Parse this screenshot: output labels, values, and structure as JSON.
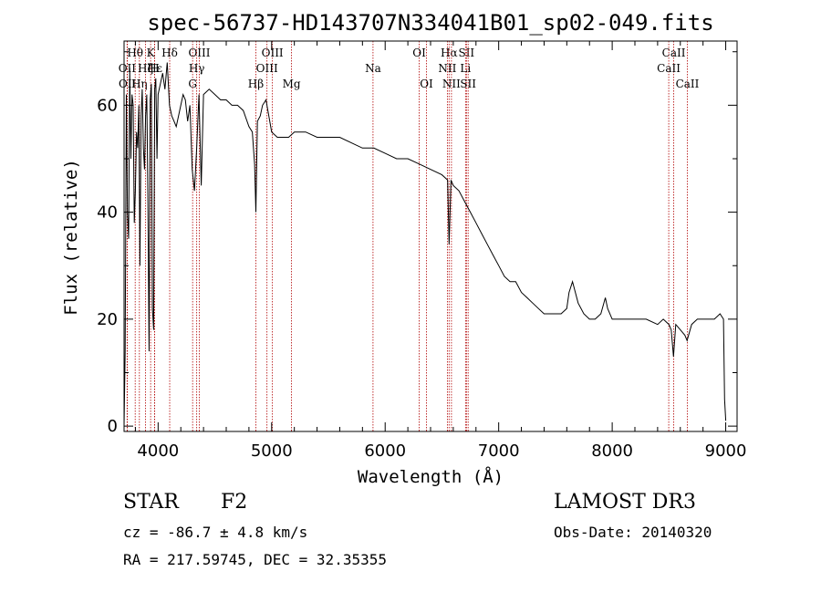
{
  "chart_data": {
    "type": "line",
    "title": "spec-56737-HD143707N334041B01_sp02-049.fits",
    "xlabel": "Wavelength (Å)",
    "ylabel": "Flux (relative)",
    "xlim": [
      3700,
      9100
    ],
    "ylim": [
      -1,
      72
    ],
    "xticks": [
      4000,
      5000,
      6000,
      7000,
      8000,
      9000
    ],
    "yticks": [
      0,
      20,
      40,
      60
    ],
    "series": [
      {
        "name": "flux",
        "x": [
          3700,
          3710,
          3720,
          3730,
          3740,
          3750,
          3760,
          3770,
          3780,
          3790,
          3800,
          3810,
          3820,
          3830,
          3840,
          3850,
          3860,
          3870,
          3880,
          3890,
          3900,
          3910,
          3920,
          3930,
          3940,
          3950,
          3960,
          3970,
          3980,
          3990,
          4000,
          4020,
          4040,
          4060,
          4080,
          4100,
          4120,
          4140,
          4160,
          4180,
          4200,
          4220,
          4240,
          4260,
          4280,
          4300,
          4320,
          4340,
          4360,
          4380,
          4400,
          4450,
          4500,
          4550,
          4600,
          4650,
          4700,
          4750,
          4800,
          4830,
          4850,
          4861,
          4875,
          4900,
          4920,
          4950,
          5000,
          5050,
          5100,
          5150,
          5200,
          5300,
          5400,
          5500,
          5600,
          5700,
          5800,
          5900,
          6000,
          6100,
          6200,
          6300,
          6400,
          6500,
          6550,
          6563,
          6580,
          6600,
          6650,
          6700,
          6750,
          6800,
          6850,
          6900,
          6950,
          7000,
          7050,
          7100,
          7150,
          7200,
          7250,
          7300,
          7350,
          7400,
          7450,
          7500,
          7550,
          7600,
          7620,
          7650,
          7700,
          7750,
          7800,
          7850,
          7900,
          7940,
          7960,
          8000,
          8100,
          8200,
          8300,
          8400,
          8450,
          8500,
          8520,
          8540,
          8560,
          8600,
          8640,
          8660,
          8700,
          8750,
          8800,
          8850,
          8900,
          8950,
          8980,
          8990,
          9000
        ],
        "y": [
          0,
          14,
          62,
          40,
          35,
          67,
          50,
          62,
          60,
          38,
          44,
          55,
          52,
          60,
          30,
          58,
          63,
          52,
          48,
          58,
          62,
          43,
          14,
          61,
          64,
          22,
          18,
          63,
          65,
          50,
          62,
          64,
          66,
          63,
          68,
          60,
          58,
          57,
          56,
          58,
          60,
          62,
          61,
          57,
          60,
          48,
          44,
          52,
          62,
          45,
          62,
          63,
          62,
          61,
          61,
          60,
          60,
          59,
          56,
          55,
          49,
          40,
          57,
          58,
          60,
          61,
          55,
          54,
          54,
          54,
          55,
          55,
          54,
          54,
          54,
          53,
          52,
          52,
          51,
          50,
          50,
          49,
          48,
          47,
          46,
          34,
          46,
          45,
          44,
          42,
          40,
          38,
          36,
          34,
          32,
          30,
          28,
          27,
          27,
          25,
          24,
          23,
          22,
          21,
          21,
          21,
          21,
          22,
          25,
          27,
          23,
          21,
          20,
          20,
          21,
          24,
          22,
          20,
          20,
          20,
          20,
          19,
          20,
          19,
          18,
          13,
          19,
          18,
          17,
          16,
          19,
          20,
          20,
          20,
          20,
          21,
          20,
          5,
          1
        ]
      }
    ],
    "lines": [
      {
        "label": "Hθ",
        "wl": 3798,
        "row": 0
      },
      {
        "label": "OII",
        "wl": 3727,
        "row": 1
      },
      {
        "label": "OII",
        "wl": 3729,
        "row": 2
      },
      {
        "label": "K",
        "wl": 3934,
        "row": 0
      },
      {
        "label": "H",
        "wl": 3969,
        "row": 1
      },
      {
        "label": "Hε",
        "wl": 3970,
        "row": 1
      },
      {
        "label": "Hη",
        "wl": 3835,
        "row": 2
      },
      {
        "label": "Hζ",
        "wl": 3889,
        "row": 1
      },
      {
        "label": "Hδ",
        "wl": 4102,
        "row": 0
      },
      {
        "label": "OIII",
        "wl": 4363,
        "row": 0
      },
      {
        "label": "Hγ",
        "wl": 4340,
        "row": 1
      },
      {
        "label": "G",
        "wl": 4304,
        "row": 2
      },
      {
        "label": "Hβ",
        "wl": 4861,
        "row": 2
      },
      {
        "label": "OIII",
        "wl": 5007,
        "row": 0
      },
      {
        "label": "OIII",
        "wl": 4959,
        "row": 1
      },
      {
        "label": "Mg",
        "wl": 5175,
        "row": 2
      },
      {
        "label": "Na",
        "wl": 5893,
        "row": 1
      },
      {
        "label": "OI",
        "wl": 6300,
        "row": 0
      },
      {
        "label": "OI",
        "wl": 6364,
        "row": 2
      },
      {
        "label": "Hα",
        "wl": 6563,
        "row": 0
      },
      {
        "label": "NII",
        "wl": 6548,
        "row": 1
      },
      {
        "label": "NII",
        "wl": 6584,
        "row": 2
      },
      {
        "label": "SII",
        "wl": 6716,
        "row": 0
      },
      {
        "label": "Li",
        "wl": 6708,
        "row": 1
      },
      {
        "label": "SII",
        "wl": 6731,
        "row": 2
      },
      {
        "label": "CaII",
        "wl": 8542,
        "row": 0
      },
      {
        "label": "CaII",
        "wl": 8498,
        "row": 1
      },
      {
        "label": "CaII",
        "wl": 8662,
        "row": 2
      }
    ]
  },
  "info": {
    "object_class": "STAR",
    "subclass": "F2",
    "survey": "LAMOST DR3",
    "cz": "cz = -86.7 ± 4.8 km/s",
    "obs_date": "Obs-Date: 20140320",
    "coords": "RA = 217.59745, DEC =  32.35355"
  }
}
